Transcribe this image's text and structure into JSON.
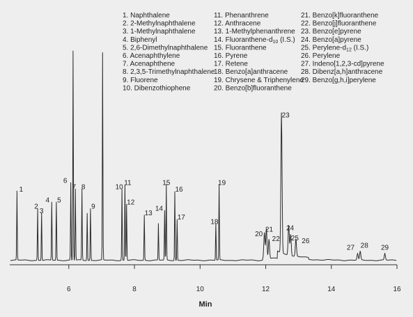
{
  "chart_data": {
    "type": "line",
    "title": "",
    "xlabel": "Min",
    "ylabel": "",
    "xlim": [
      4.2,
      16.0
    ],
    "ylim": [
      0,
      100
    ],
    "x_ticks": [
      6,
      8,
      10,
      12,
      14,
      16
    ],
    "grid": false,
    "series": [
      {
        "values_note": "",
        "points": []
      }
    ],
    "peaks": [
      {
        "label": "1",
        "rt": 4.42,
        "height": 32
      },
      {
        "label": "2",
        "rt": 5.05,
        "height": 24
      },
      {
        "label": "3",
        "rt": 5.17,
        "height": 22
      },
      {
        "label": "4",
        "rt": 5.48,
        "height": 27
      },
      {
        "label": "5",
        "rt": 5.62,
        "height": 27
      },
      {
        "label": "6",
        "rt": 6.06,
        "height": 36
      },
      {
        "label": "",
        "rt": 6.13,
        "height": 97
      },
      {
        "label": "7",
        "rt": 6.2,
        "height": 33
      },
      {
        "label": "8",
        "rt": 6.4,
        "height": 33
      },
      {
        "label": "",
        "rt": 6.56,
        "height": 22
      },
      {
        "label": "9",
        "rt": 6.66,
        "height": 24
      },
      {
        "label": "",
        "rt": 7.03,
        "height": 96
      },
      {
        "label": "10",
        "rt": 7.62,
        "height": 33
      },
      {
        "label": "11",
        "rt": 7.71,
        "height": 35
      },
      {
        "label": "12",
        "rt": 7.76,
        "height": 26
      },
      {
        "label": "13",
        "rt": 8.3,
        "height": 21
      },
      {
        "label": "",
        "rt": 8.73,
        "height": 17
      },
      {
        "label": "14",
        "rt": 8.92,
        "height": 23
      },
      {
        "label": "15",
        "rt": 8.97,
        "height": 35
      },
      {
        "label": "16",
        "rt": 9.23,
        "height": 32
      },
      {
        "label": "17",
        "rt": 9.3,
        "height": 19
      },
      {
        "label": "18",
        "rt": 10.48,
        "height": 17
      },
      {
        "label": "19",
        "rt": 10.58,
        "height": 35
      },
      {
        "label": "20",
        "rt": 11.96,
        "height": 12
      },
      {
        "label": "21",
        "rt": 12.02,
        "height": 14
      },
      {
        "label": "22",
        "rt": 12.1,
        "height": 9
      },
      {
        "label": "23",
        "rt": 12.48,
        "height": 65
      },
      {
        "label": "24",
        "rt": 12.7,
        "height": 14
      },
      {
        "label": "25",
        "rt": 12.76,
        "height": 10
      },
      {
        "label": "26",
        "rt": 12.92,
        "height": 8
      },
      {
        "label": "27",
        "rt": 14.8,
        "height": 3
      },
      {
        "label": "28",
        "rt": 14.88,
        "height": 4
      },
      {
        "label": "29",
        "rt": 15.63,
        "height": 3
      }
    ],
    "legend": [
      [
        "1. Naphthalene",
        "2. 2-Methylnaphthalene",
        "3. 1-Methylnaphthalene",
        "4. Biphenyl",
        "5. 2,6-Dimethylnaphthalene",
        "6. Acenaphthylene",
        "7. Acenaphthene",
        "8. 2,3,5-Trimethylnaphthalene",
        "9. Fluorene",
        "10. Dibenzothiophene"
      ],
      [
        "11. Phenanthrene",
        "12. Anthracene",
        "13. 1-Methylphenanthrene",
        "14. Fluoranthene-d10 (I.S.)",
        "15. Fluoranthene",
        "16. Pyrene",
        "17. Retene",
        "18. Benzo[a]anthracene",
        "19. Chrysene & Triphenylene",
        "20. Benzo[b]fluoranthene"
      ],
      [
        "21. Benzo[k]fluoranthene",
        "22. Benzo[j]fluoranthene",
        "23. Benzo[e]pyrene",
        "24. Benzo[a]pyrene",
        "25. Perylene-d12 (I.S.)",
        "26. Perylene",
        "27. Indeno[1,2,3-cd]pyrene",
        "28. Dibenz[a,h]anthracene",
        "29. Benzo[g,h,i]perylene"
      ]
    ],
    "legend_placement": "top-right"
  }
}
